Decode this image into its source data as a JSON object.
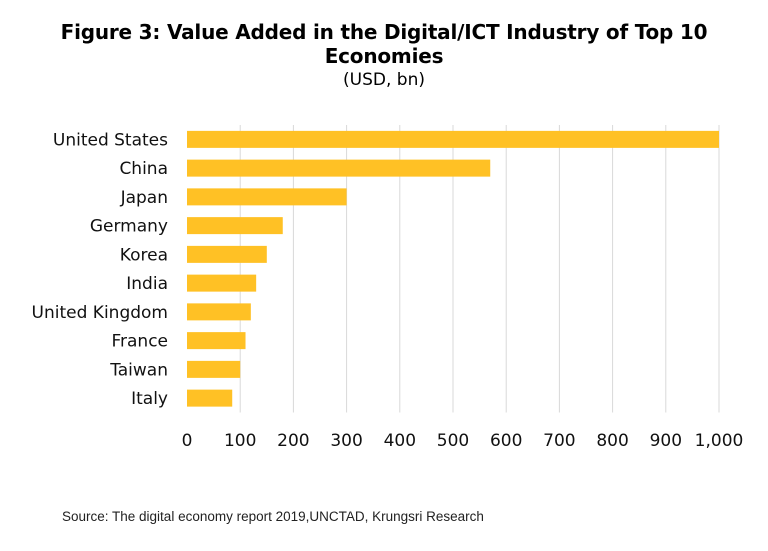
{
  "title": "Figure 3: Value Added in the Digital/ICT Industry of Top 10 Economies",
  "subtitle": "(USD, bn)",
  "source": "Source: The digital economy report 2019,UNCTAD, Krungsri Research",
  "colors": {
    "bar": "#FFC125",
    "grid": "#d9d9d9"
  },
  "chart_data": {
    "type": "bar",
    "orientation": "horizontal",
    "categories": [
      "United States",
      "China",
      "Japan",
      "Germany",
      "Korea",
      "India",
      "United Kingdom",
      "France",
      "Taiwan",
      "Italy"
    ],
    "values": [
      1000,
      570,
      300,
      180,
      150,
      130,
      120,
      110,
      100,
      85
    ],
    "xlim": [
      0,
      1000
    ],
    "xticks": [
      0,
      100,
      200,
      300,
      400,
      500,
      600,
      700,
      800,
      900,
      1000
    ],
    "xtick_labels": [
      "0",
      "100",
      "200",
      "300",
      "400",
      "500",
      "600",
      "700",
      "800",
      "900",
      "1,000"
    ],
    "grid": "vertical",
    "legend": "none"
  }
}
